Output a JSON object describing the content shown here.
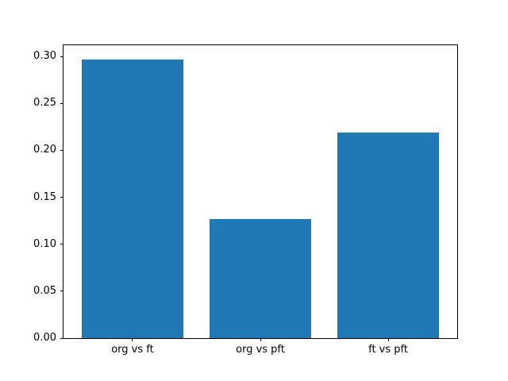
{
  "figure": {
    "background": "#ffffff",
    "spine_color": "#000000"
  },
  "chart_data": {
    "type": "bar",
    "title": "",
    "xlabel": "",
    "ylabel": "",
    "categories": [
      "org vs ft",
      "org vs pft",
      "ft vs pft"
    ],
    "values": [
      0.297,
      0.127,
      0.219
    ],
    "bar_color": "#1f77b4",
    "bar_width_fraction": 0.8,
    "x_margin_fraction": 0.05,
    "ylim": [
      0,
      0.3119
    ],
    "yticks": [
      0.0,
      0.05,
      0.1,
      0.15,
      0.2,
      0.25,
      0.3
    ],
    "ytick_labels": [
      "0.00",
      "0.05",
      "0.10",
      "0.15",
      "0.20",
      "0.25",
      "0.30"
    ],
    "grid": false,
    "legend": null
  }
}
